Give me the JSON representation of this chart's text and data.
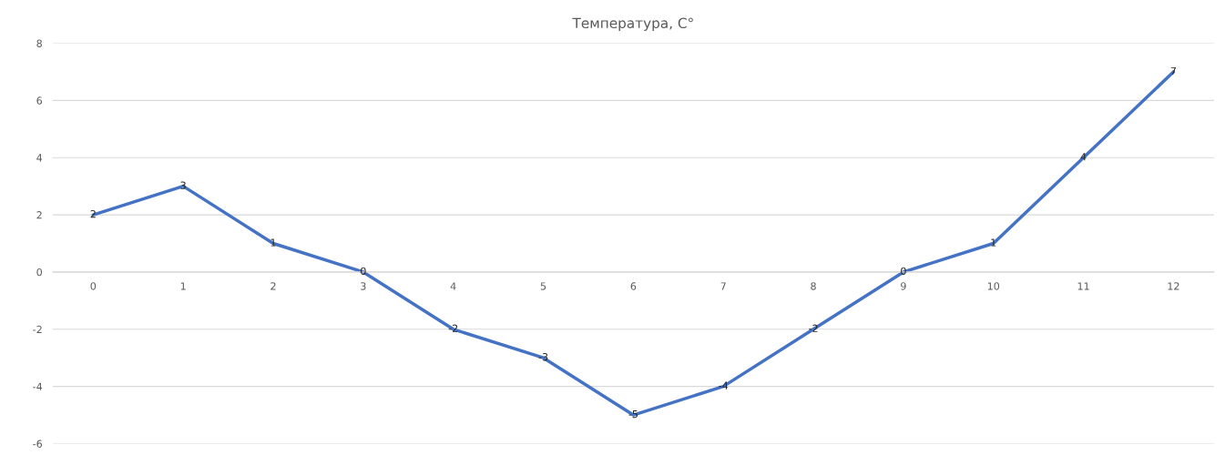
{
  "chart_data": {
    "type": "line",
    "title": "Температура, C°",
    "categories": [
      "0",
      "1",
      "2",
      "3",
      "4",
      "5",
      "6",
      "7",
      "8",
      "9",
      "10",
      "11",
      "12"
    ],
    "series": [
      {
        "color": "#4472c4",
        "values": [
          2,
          3,
          1,
          0,
          -2,
          -3,
          -5,
          -4,
          -2,
          0,
          1,
          4,
          7
        ]
      }
    ],
    "ylim": [
      -6,
      8
    ],
    "yticks": [
      -6,
      -4,
      -2,
      0,
      2,
      4,
      6,
      8
    ],
    "grid": "y",
    "data_labels": true,
    "marker": "none",
    "line_style": "solid"
  }
}
